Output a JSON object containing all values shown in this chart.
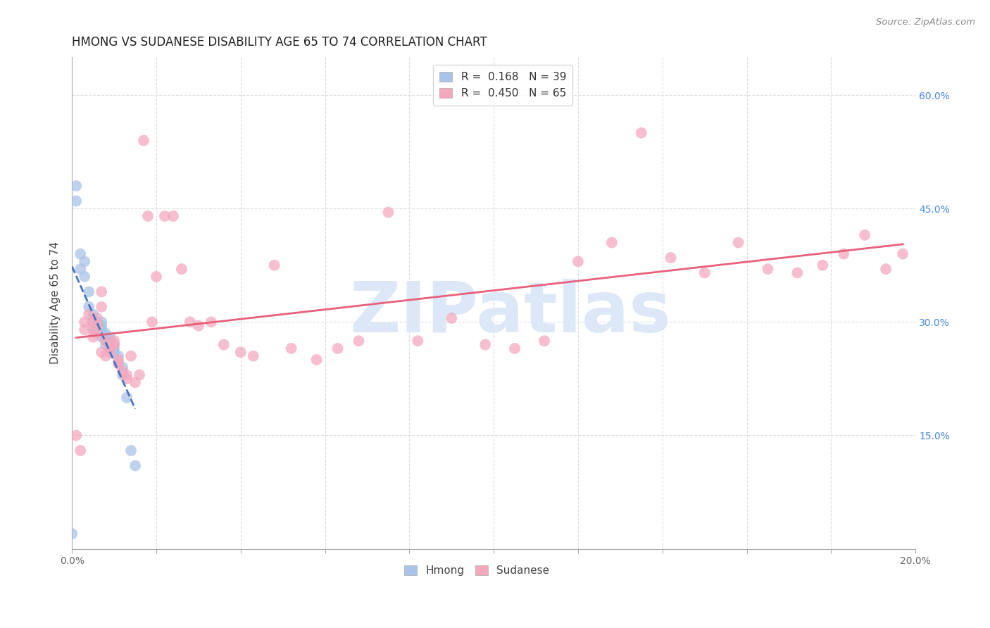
{
  "title": "HMONG VS SUDANESE DISABILITY AGE 65 TO 74 CORRELATION CHART",
  "source": "Source: ZipAtlas.com",
  "ylabel": "Disability Age 65 to 74",
  "xlim": [
    0.0,
    0.2
  ],
  "ylim": [
    0.0,
    0.65
  ],
  "x_ticks": [
    0.0,
    0.02,
    0.04,
    0.06,
    0.08,
    0.1,
    0.12,
    0.14,
    0.16,
    0.18,
    0.2
  ],
  "y_ticks": [
    0.0,
    0.15,
    0.3,
    0.45,
    0.6
  ],
  "hmong_R": 0.168,
  "hmong_N": 39,
  "sudanese_R": 0.45,
  "sudanese_N": 65,
  "hmong_color": "#a8c4e8",
  "sudanese_color": "#f4a8be",
  "hmong_line_color": "#4472c4",
  "sudanese_line_color": "#e8607a",
  "background_color": "#ffffff",
  "grid_color": "#dddddd",
  "title_fontsize": 12,
  "axis_label_fontsize": 11,
  "tick_fontsize": 10,
  "legend_fontsize": 11,
  "watermark": "ZIPatlas",
  "watermark_color": "#dce8f8",
  "watermark_fontsize": 72,
  "hmong_x": [
    0.0,
    0.001,
    0.001,
    0.002,
    0.002,
    0.003,
    0.003,
    0.004,
    0.004,
    0.005,
    0.005,
    0.005,
    0.006,
    0.006,
    0.006,
    0.006,
    0.007,
    0.007,
    0.007,
    0.007,
    0.007,
    0.008,
    0.008,
    0.008,
    0.008,
    0.009,
    0.009,
    0.009,
    0.009,
    0.01,
    0.01,
    0.01,
    0.011,
    0.011,
    0.012,
    0.012,
    0.013,
    0.014,
    0.015
  ],
  "hmong_y": [
    0.02,
    0.48,
    0.46,
    0.39,
    0.37,
    0.38,
    0.36,
    0.34,
    0.32,
    0.31,
    0.3,
    0.29,
    0.3,
    0.295,
    0.29,
    0.285,
    0.3,
    0.295,
    0.29,
    0.285,
    0.28,
    0.285,
    0.28,
    0.275,
    0.27,
    0.28,
    0.275,
    0.27,
    0.265,
    0.27,
    0.265,
    0.26,
    0.255,
    0.245,
    0.24,
    0.23,
    0.2,
    0.13,
    0.11
  ],
  "sudanese_x": [
    0.001,
    0.002,
    0.003,
    0.003,
    0.004,
    0.005,
    0.005,
    0.005,
    0.006,
    0.006,
    0.006,
    0.007,
    0.007,
    0.007,
    0.008,
    0.008,
    0.009,
    0.009,
    0.01,
    0.01,
    0.011,
    0.011,
    0.012,
    0.013,
    0.013,
    0.014,
    0.015,
    0.016,
    0.017,
    0.018,
    0.019,
    0.02,
    0.022,
    0.024,
    0.026,
    0.028,
    0.03,
    0.033,
    0.036,
    0.04,
    0.043,
    0.048,
    0.052,
    0.058,
    0.063,
    0.068,
    0.075,
    0.082,
    0.09,
    0.098,
    0.105,
    0.112,
    0.12,
    0.128,
    0.135,
    0.142,
    0.15,
    0.158,
    0.165,
    0.172,
    0.178,
    0.183,
    0.188,
    0.193,
    0.197
  ],
  "sudanese_y": [
    0.15,
    0.13,
    0.3,
    0.29,
    0.31,
    0.28,
    0.29,
    0.3,
    0.295,
    0.305,
    0.285,
    0.34,
    0.26,
    0.32,
    0.255,
    0.275,
    0.265,
    0.26,
    0.275,
    0.27,
    0.25,
    0.245,
    0.235,
    0.23,
    0.225,
    0.255,
    0.22,
    0.23,
    0.54,
    0.44,
    0.3,
    0.36,
    0.44,
    0.44,
    0.37,
    0.3,
    0.295,
    0.3,
    0.27,
    0.26,
    0.255,
    0.375,
    0.265,
    0.25,
    0.265,
    0.275,
    0.445,
    0.275,
    0.305,
    0.27,
    0.265,
    0.275,
    0.38,
    0.405,
    0.55,
    0.385,
    0.365,
    0.405,
    0.37,
    0.365,
    0.375,
    0.39,
    0.415,
    0.37,
    0.39
  ]
}
